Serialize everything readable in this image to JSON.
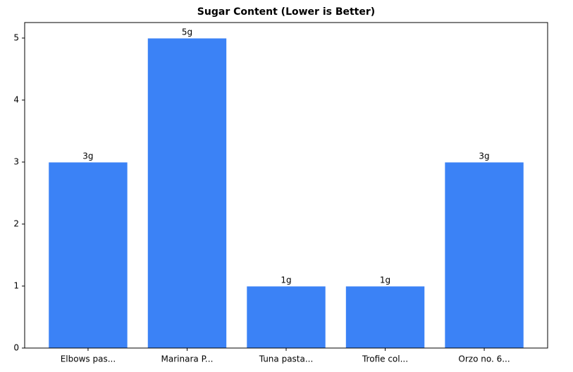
{
  "chart_data": {
    "type": "bar",
    "title": "Sugar Content (Lower is Better)",
    "categories": [
      "Elbows pas...",
      "Marinara P...",
      "Tuna pasta...",
      "Trofie col...",
      "Orzo no. 6..."
    ],
    "values": [
      3,
      5,
      1,
      1,
      3
    ],
    "value_labels": [
      "3g",
      "5g",
      "1g",
      "1g",
      "3g"
    ],
    "color": "#3b82f6",
    "ylim": [
      0,
      5.25
    ],
    "yticks": [
      0,
      1,
      2,
      3,
      4,
      5
    ],
    "grid": false
  }
}
